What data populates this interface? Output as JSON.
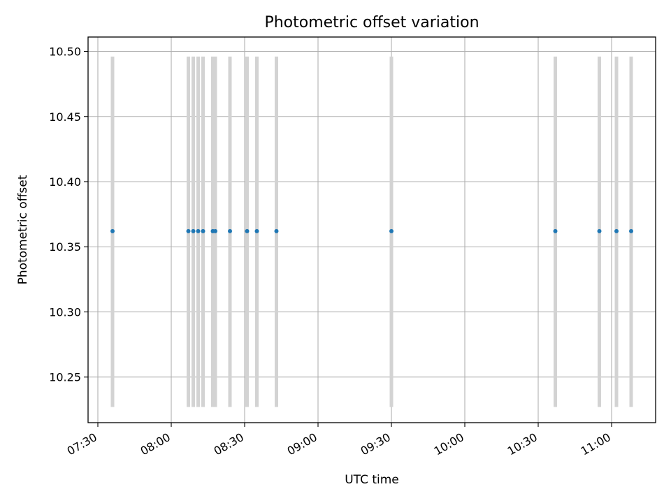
{
  "chart_data": {
    "type": "scatter",
    "title": "Photometric offset variation",
    "xlabel": "UTC time",
    "ylabel": "Photometric offset",
    "x_ticks": [
      "07:30",
      "08:00",
      "08:30",
      "09:00",
      "09:30",
      "10:00",
      "10:30",
      "11:00"
    ],
    "y_ticks": [
      "10.25",
      "10.30",
      "10.35",
      "10.40",
      "10.45",
      "10.50"
    ],
    "xlim": [
      "07:26",
      "11:18"
    ],
    "ylim": [
      10.215,
      10.511
    ],
    "grid": true,
    "point_color": "#1f77b4",
    "errorbar_color": "#d3d3d3",
    "points": [
      {
        "time": "07:36",
        "value": 10.362,
        "err_low": 10.227,
        "err_high": 10.496
      },
      {
        "time": "08:07",
        "value": 10.362,
        "err_low": 10.227,
        "err_high": 10.496
      },
      {
        "time": "08:09",
        "value": 10.362,
        "err_low": 10.227,
        "err_high": 10.496
      },
      {
        "time": "08:11",
        "value": 10.362,
        "err_low": 10.227,
        "err_high": 10.496
      },
      {
        "time": "08:13",
        "value": 10.362,
        "err_low": 10.227,
        "err_high": 10.496
      },
      {
        "time": "08:17",
        "value": 10.362,
        "err_low": 10.227,
        "err_high": 10.496
      },
      {
        "time": "08:18",
        "value": 10.362,
        "err_low": 10.227,
        "err_high": 10.496
      },
      {
        "time": "08:24",
        "value": 10.362,
        "err_low": 10.227,
        "err_high": 10.496
      },
      {
        "time": "08:31",
        "value": 10.362,
        "err_low": 10.227,
        "err_high": 10.496
      },
      {
        "time": "08:35",
        "value": 10.362,
        "err_low": 10.227,
        "err_high": 10.496
      },
      {
        "time": "08:43",
        "value": 10.362,
        "err_low": 10.227,
        "err_high": 10.496
      },
      {
        "time": "09:30",
        "value": 10.362,
        "err_low": 10.227,
        "err_high": 10.496
      },
      {
        "time": "10:37",
        "value": 10.362,
        "err_low": 10.227,
        "err_high": 10.496
      },
      {
        "time": "10:55",
        "value": 10.362,
        "err_low": 10.227,
        "err_high": 10.496
      },
      {
        "time": "11:02",
        "value": 10.362,
        "err_low": 10.227,
        "err_high": 10.496
      },
      {
        "time": "11:08",
        "value": 10.362,
        "err_low": 10.227,
        "err_high": 10.496
      }
    ]
  }
}
